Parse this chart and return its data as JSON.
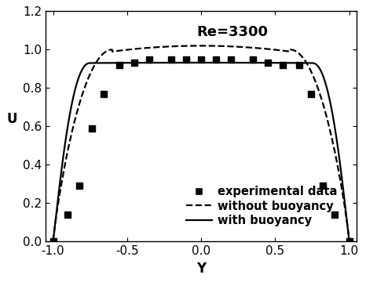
{
  "title": "Re=3300",
  "xlabel": "Y",
  "ylabel": "U",
  "xlim": [
    -1.05,
    1.05
  ],
  "ylim": [
    0.0,
    1.2
  ],
  "xticks": [
    -1.0,
    -0.5,
    0.0,
    0.5,
    1.0
  ],
  "yticks": [
    0.0,
    0.2,
    0.4,
    0.6,
    0.8,
    1.0,
    1.2
  ],
  "exp_x": [
    -1.0,
    -0.9,
    -0.82,
    -0.74,
    -0.66,
    -0.55,
    -0.45,
    -0.35,
    -0.2,
    -0.1,
    0.0,
    0.1,
    0.2,
    0.35,
    0.45,
    0.55,
    0.66,
    0.74,
    0.82,
    0.9,
    1.0
  ],
  "exp_y": [
    0.0,
    0.14,
    0.29,
    0.59,
    0.77,
    0.92,
    0.93,
    0.95,
    0.95,
    0.95,
    0.95,
    0.95,
    0.95,
    0.95,
    0.93,
    0.92,
    0.92,
    0.77,
    0.29,
    0.14,
    0.0
  ],
  "background_color": "#ffffff",
  "line_color": "#000000",
  "title_fontsize": 13,
  "label_fontsize": 12,
  "tick_fontsize": 11,
  "legend_fontsize": 10.5
}
